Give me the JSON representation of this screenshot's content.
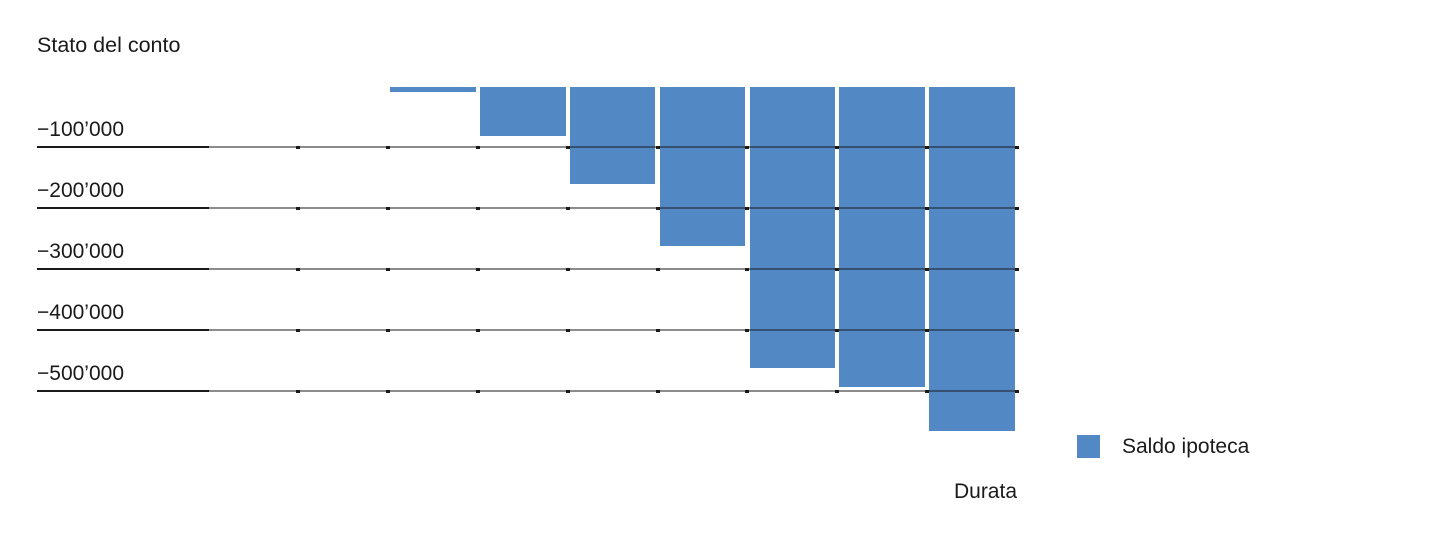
{
  "page": {
    "background": "#ffffff",
    "text_color": "#1a1a1a"
  },
  "chart_data": {
    "type": "bar",
    "title": "Stato del conto",
    "xlabel": "Durata",
    "ylabel": "",
    "series": [
      {
        "name": "Saldo ipoteca",
        "values": [
          -8000,
          -80000,
          -160000,
          -261000,
          -462000,
          -492000,
          -565000
        ]
      }
    ],
    "y_ticks": [
      {
        "label": "−100’000",
        "value": -100000
      },
      {
        "label": "−200’000",
        "value": -200000
      },
      {
        "label": "−300’000",
        "value": -300000
      },
      {
        "label": "−400’000",
        "value": -400000
      },
      {
        "label": "−500’000",
        "value": -500000
      }
    ],
    "ylim": [
      -600000,
      0
    ],
    "bar_color": "#5289C4",
    "grid_color_dark": "#1a1a1a",
    "legend": [
      {
        "label": "Saldo ipoteca",
        "color": "#5289C4"
      }
    ],
    "layout": {
      "columns_total": 9,
      "bars_start_at_column": 3,
      "grid": "horizontal",
      "legend_position": "bottom-right",
      "xlabel_position": "bottom-right"
    }
  }
}
